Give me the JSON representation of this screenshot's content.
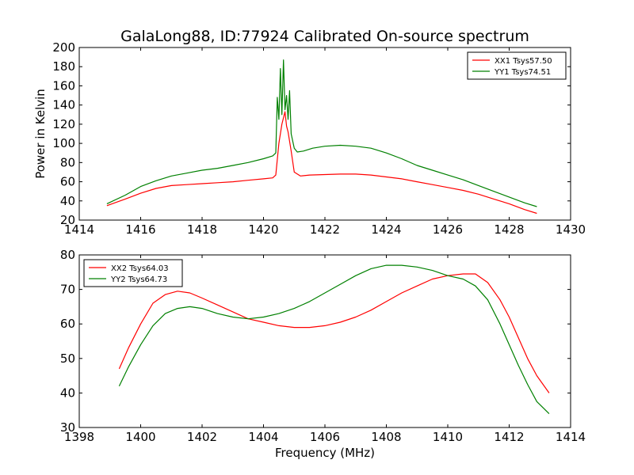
{
  "figure": {
    "title": "GalaLong88, ID:77924 Calibrated On-source spectrum",
    "ylabel": "Power in Kelvin",
    "xlabel": "Frequency (MHz)"
  },
  "chart_data": [
    {
      "type": "line",
      "title": "GalaLong88, ID:77924 Calibrated On-source spectrum",
      "ylabel": "Power in Kelvin",
      "xlabel": "",
      "xlim": [
        1414,
        1430
      ],
      "ylim": [
        20,
        200
      ],
      "xticks": [
        1414,
        1416,
        1418,
        1420,
        1422,
        1424,
        1426,
        1428,
        1430
      ],
      "yticks": [
        20,
        40,
        60,
        80,
        100,
        120,
        140,
        160,
        180,
        200
      ],
      "grid": false,
      "legend_position": "top-right",
      "series": [
        {
          "name": "XX1 Tsys57.50",
          "color": "#ff0000",
          "x": [
            1414.9,
            1415.5,
            1416,
            1416.5,
            1417,
            1417.5,
            1418,
            1418.5,
            1419,
            1419.5,
            1420,
            1420.3,
            1420.4,
            1420.5,
            1420.6,
            1420.7,
            1420.75,
            1420.8,
            1420.9,
            1421,
            1421.2,
            1421.5,
            1422,
            1422.5,
            1423,
            1423.5,
            1424,
            1424.5,
            1425,
            1425.5,
            1426,
            1426.5,
            1427,
            1427.5,
            1428,
            1428.5,
            1428.9
          ],
          "y": [
            35,
            42,
            48,
            53,
            56,
            57,
            58,
            59,
            60,
            61.5,
            63,
            64,
            67,
            100,
            120,
            133,
            118,
            112,
            92,
            70,
            66,
            67,
            67.5,
            68,
            68,
            67,
            65,
            63,
            60,
            57,
            54,
            51,
            47,
            42,
            37,
            31,
            27
          ]
        },
        {
          "name": "YY1 Tsys74.51",
          "color": "#008000",
          "x": [
            1414.9,
            1415.5,
            1416,
            1416.5,
            1417,
            1417.5,
            1418,
            1418.5,
            1419,
            1419.5,
            1420,
            1420.3,
            1420.4,
            1420.45,
            1420.5,
            1420.55,
            1420.6,
            1420.65,
            1420.7,
            1420.75,
            1420.8,
            1420.85,
            1420.9,
            1421,
            1421.1,
            1421.3,
            1421.6,
            1422,
            1422.5,
            1423,
            1423.5,
            1424,
            1424.5,
            1425,
            1425.5,
            1426,
            1426.5,
            1427,
            1427.5,
            1428,
            1428.5,
            1428.9
          ],
          "y": [
            37,
            46,
            55,
            61,
            66,
            69,
            72,
            74,
            77,
            80,
            84,
            87,
            90,
            148,
            125,
            178,
            130,
            187,
            135,
            150,
            125,
            155,
            110,
            95,
            91,
            92,
            95,
            97,
            98,
            97,
            95,
            90,
            84,
            77,
            72,
            67,
            62,
            56,
            50,
            44,
            38,
            34
          ]
        }
      ]
    },
    {
      "type": "line",
      "title": "",
      "ylabel": "",
      "xlabel": "Frequency (MHz)",
      "xlim": [
        1398,
        1414
      ],
      "ylim": [
        30,
        80
      ],
      "xticks": [
        1398,
        1400,
        1402,
        1404,
        1406,
        1408,
        1410,
        1412,
        1414
      ],
      "yticks": [
        30,
        40,
        50,
        60,
        70,
        80
      ],
      "grid": false,
      "legend_position": "top-left",
      "series": [
        {
          "name": "XX2 Tsys64.03",
          "color": "#ff0000",
          "x": [
            1399.3,
            1399.6,
            1400,
            1400.4,
            1400.8,
            1401.2,
            1401.6,
            1402,
            1402.5,
            1403,
            1403.5,
            1404,
            1404.5,
            1405,
            1405.5,
            1406,
            1406.5,
            1407,
            1407.5,
            1408,
            1408.5,
            1409,
            1409.5,
            1410,
            1410.5,
            1410.9,
            1411.3,
            1411.7,
            1412,
            1412.3,
            1412.6,
            1412.9,
            1413.3
          ],
          "y": [
            47,
            53,
            60,
            66,
            68.5,
            69.5,
            69,
            67.5,
            65.5,
            63.5,
            61.5,
            60.5,
            59.5,
            59,
            59,
            59.5,
            60.5,
            62,
            64,
            66.5,
            69,
            71,
            73,
            74,
            74.5,
            74.5,
            72,
            67,
            62,
            56,
            50,
            45,
            40
          ]
        },
        {
          "name": "YY2 Tsys64.73",
          "color": "#008000",
          "x": [
            1399.3,
            1399.6,
            1400,
            1400.4,
            1400.8,
            1401.2,
            1401.6,
            1402,
            1402.5,
            1403,
            1403.5,
            1404,
            1404.5,
            1405,
            1405.5,
            1406,
            1406.5,
            1407,
            1407.5,
            1408,
            1408.5,
            1409,
            1409.5,
            1410,
            1410.5,
            1410.9,
            1411.3,
            1411.7,
            1412,
            1412.3,
            1412.6,
            1412.9,
            1413.3
          ],
          "y": [
            42,
            47.5,
            54,
            59.5,
            63,
            64.5,
            65,
            64.5,
            63,
            62,
            61.5,
            62,
            63,
            64.5,
            66.5,
            69,
            71.5,
            74,
            76,
            77,
            77,
            76.5,
            75.5,
            74,
            73,
            71,
            67,
            60,
            54,
            48,
            42.5,
            37.5,
            34
          ]
        }
      ]
    }
  ]
}
